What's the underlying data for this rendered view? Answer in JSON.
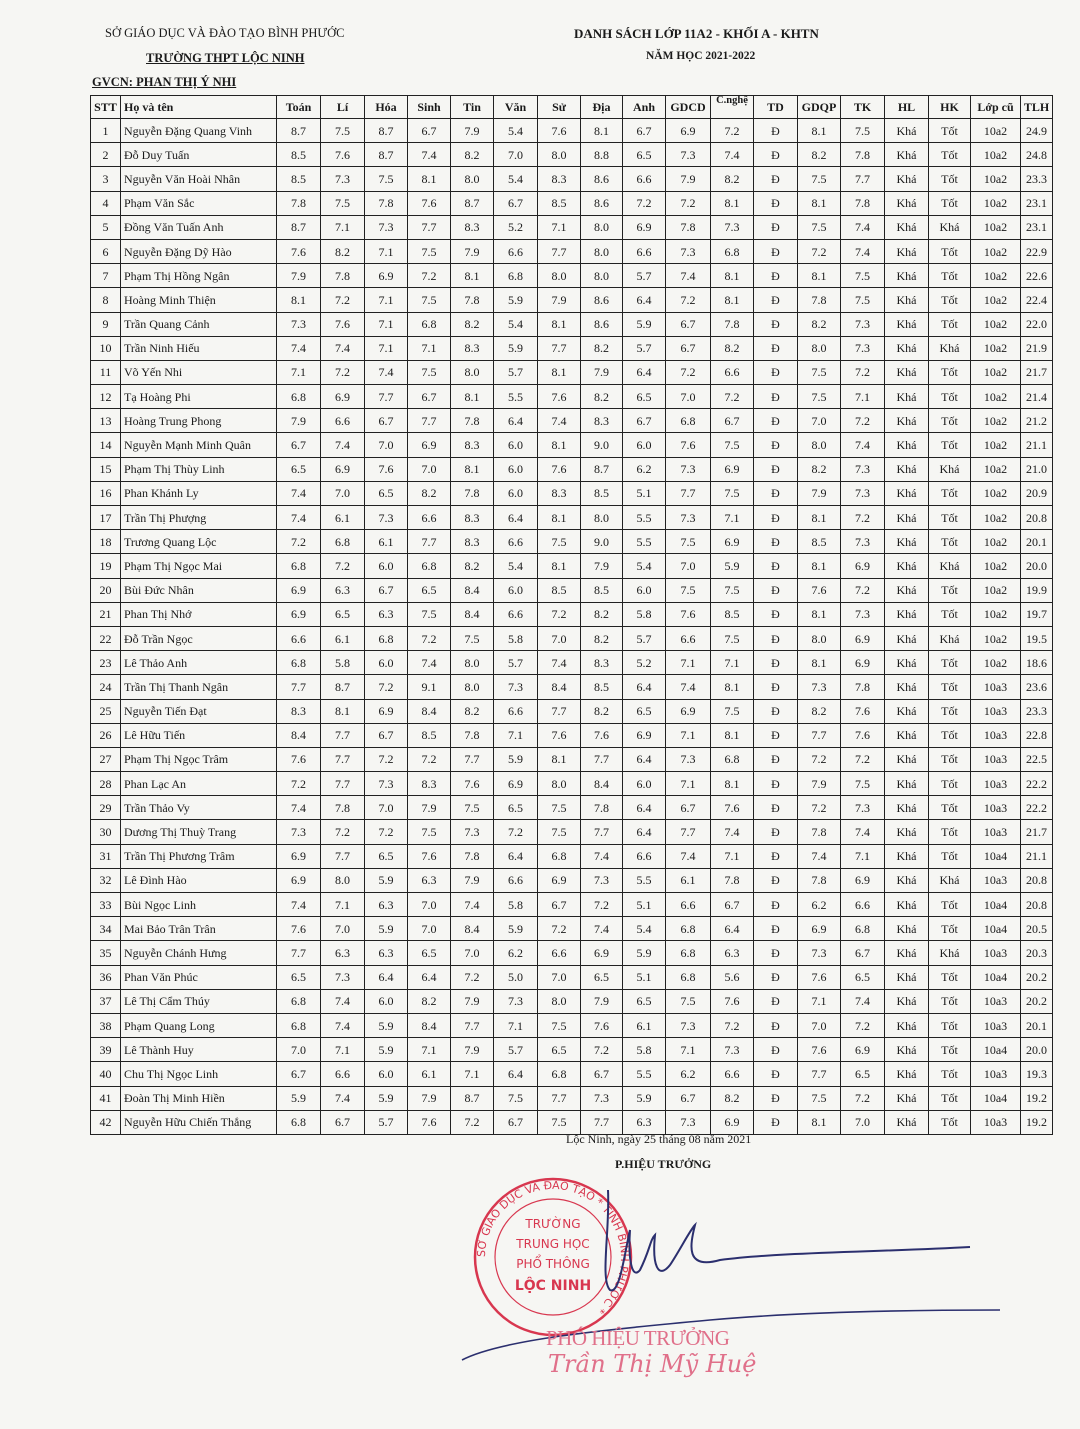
{
  "header": {
    "department": "SỞ GIÁO DỤC VÀ ĐÀO TẠO BÌNH PHƯỚC",
    "school": "TRƯỜNG THPT LỘC NINH",
    "teacher": "GVCN: PHAN THỊ Ý NHI",
    "title": "DANH SÁCH LỚP 11A2 - KHỐI A - KHTN",
    "school_year": "NĂM HỌC 2021-2022"
  },
  "table": {
    "columns": [
      "STT",
      "Họ và tên",
      "Toán",
      "Lí",
      "Hóa",
      "Sinh",
      "Tin",
      "Văn",
      "Sử",
      "Địa",
      "Anh",
      "GDCD",
      "C.nghệ",
      "TD",
      "GDQP",
      "TK",
      "HL",
      "HK",
      "Lớp cũ",
      "TLH"
    ],
    "rows": [
      [
        "1",
        "Nguyễn Đặng Quang Vinh",
        "8.7",
        "7.5",
        "8.7",
        "6.7",
        "7.9",
        "5.4",
        "7.6",
        "8.1",
        "6.7",
        "6.9",
        "7.2",
        "Đ",
        "8.1",
        "7.5",
        "Khá",
        "Tốt",
        "10a2",
        "24.9"
      ],
      [
        "2",
        "Đỗ Duy Tuấn",
        "8.5",
        "7.6",
        "8.7",
        "7.4",
        "8.2",
        "7.0",
        "8.0",
        "8.8",
        "6.5",
        "7.3",
        "7.4",
        "Đ",
        "8.2",
        "7.8",
        "Khá",
        "Tốt",
        "10a2",
        "24.8"
      ],
      [
        "3",
        "Nguyễn Văn Hoài Nhân",
        "8.5",
        "7.3",
        "7.5",
        "8.1",
        "8.0",
        "5.4",
        "8.3",
        "8.6",
        "6.6",
        "7.9",
        "8.2",
        "Đ",
        "7.5",
        "7.7",
        "Khá",
        "Tốt",
        "10a2",
        "23.3"
      ],
      [
        "4",
        "Phạm Văn Sắc",
        "7.8",
        "7.5",
        "7.8",
        "7.6",
        "8.7",
        "6.7",
        "8.5",
        "8.6",
        "7.2",
        "7.2",
        "8.1",
        "Đ",
        "8.1",
        "7.8",
        "Khá",
        "Tốt",
        "10a2",
        "23.1"
      ],
      [
        "5",
        "Đồng Văn Tuấn Anh",
        "8.7",
        "7.1",
        "7.3",
        "7.7",
        "8.3",
        "5.2",
        "7.1",
        "8.0",
        "6.9",
        "7.8",
        "7.3",
        "Đ",
        "7.5",
        "7.4",
        "Khá",
        "Khá",
        "10a2",
        "23.1"
      ],
      [
        "6",
        "Nguyễn Đặng Dỹ Hào",
        "7.6",
        "8.2",
        "7.1",
        "7.5",
        "7.9",
        "6.6",
        "7.7",
        "8.0",
        "6.6",
        "7.3",
        "6.8",
        "Đ",
        "7.2",
        "7.4",
        "Khá",
        "Tốt",
        "10a2",
        "22.9"
      ],
      [
        "7",
        "Phạm Thị Hồng Ngân",
        "7.9",
        "7.8",
        "6.9",
        "7.2",
        "8.1",
        "6.8",
        "8.0",
        "8.0",
        "5.7",
        "7.4",
        "8.1",
        "Đ",
        "8.1",
        "7.5",
        "Khá",
        "Tốt",
        "10a2",
        "22.6"
      ],
      [
        "8",
        "Hoàng Minh Thiện",
        "8.1",
        "7.2",
        "7.1",
        "7.5",
        "7.8",
        "5.9",
        "7.9",
        "8.6",
        "6.4",
        "7.2",
        "8.1",
        "Đ",
        "7.8",
        "7.5",
        "Khá",
        "Tốt",
        "10a2",
        "22.4"
      ],
      [
        "9",
        "Trần Quang Cảnh",
        "7.3",
        "7.6",
        "7.1",
        "6.8",
        "8.2",
        "5.4",
        "8.1",
        "8.6",
        "5.9",
        "6.7",
        "7.8",
        "Đ",
        "8.2",
        "7.3",
        "Khá",
        "Tốt",
        "10a2",
        "22.0"
      ],
      [
        "10",
        "Trần Ninh Hiếu",
        "7.4",
        "7.4",
        "7.1",
        "7.1",
        "8.3",
        "5.9",
        "7.7",
        "8.2",
        "5.7",
        "6.7",
        "8.2",
        "Đ",
        "8.0",
        "7.3",
        "Khá",
        "Khá",
        "10a2",
        "21.9"
      ],
      [
        "11",
        "Võ Yến Nhi",
        "7.1",
        "7.2",
        "7.4",
        "7.5",
        "8.0",
        "5.7",
        "8.1",
        "7.9",
        "6.4",
        "7.2",
        "6.6",
        "Đ",
        "7.5",
        "7.2",
        "Khá",
        "Tốt",
        "10a2",
        "21.7"
      ],
      [
        "12",
        "Tạ Hoàng Phi",
        "6.8",
        "6.9",
        "7.7",
        "6.7",
        "8.1",
        "5.5",
        "7.6",
        "8.2",
        "6.5",
        "7.0",
        "7.2",
        "Đ",
        "7.5",
        "7.1",
        "Khá",
        "Tốt",
        "10a2",
        "21.4"
      ],
      [
        "13",
        "Hoàng Trung Phong",
        "7.9",
        "6.6",
        "6.7",
        "7.7",
        "7.8",
        "6.4",
        "7.4",
        "8.3",
        "6.7",
        "6.8",
        "6.7",
        "Đ",
        "7.0",
        "7.2",
        "Khá",
        "Tốt",
        "10a2",
        "21.2"
      ],
      [
        "14",
        "Nguyễn Mạnh Minh Quân",
        "6.7",
        "7.4",
        "7.0",
        "6.9",
        "8.3",
        "6.0",
        "8.1",
        "9.0",
        "6.0",
        "7.6",
        "7.5",
        "Đ",
        "8.0",
        "7.4",
        "Khá",
        "Tốt",
        "10a2",
        "21.1"
      ],
      [
        "15",
        "Phạm Thị Thùy Linh",
        "6.5",
        "6.9",
        "7.6",
        "7.0",
        "8.1",
        "6.0",
        "7.6",
        "8.7",
        "6.2",
        "7.3",
        "6.9",
        "Đ",
        "8.2",
        "7.3",
        "Khá",
        "Khá",
        "10a2",
        "21.0"
      ],
      [
        "16",
        "Phan Khánh Ly",
        "7.4",
        "7.0",
        "6.5",
        "8.2",
        "7.8",
        "6.0",
        "8.3",
        "8.5",
        "5.1",
        "7.7",
        "7.5",
        "Đ",
        "7.9",
        "7.3",
        "Khá",
        "Tốt",
        "10a2",
        "20.9"
      ],
      [
        "17",
        "Trần Thị Phượng",
        "7.4",
        "6.1",
        "7.3",
        "6.6",
        "8.3",
        "6.4",
        "8.1",
        "8.0",
        "5.5",
        "7.3",
        "7.1",
        "Đ",
        "8.1",
        "7.2",
        "Khá",
        "Tốt",
        "10a2",
        "20.8"
      ],
      [
        "18",
        "Trương Quang Lộc",
        "7.2",
        "6.8",
        "6.1",
        "7.7",
        "8.3",
        "6.6",
        "7.5",
        "9.0",
        "5.5",
        "7.5",
        "6.9",
        "Đ",
        "8.5",
        "7.3",
        "Khá",
        "Tốt",
        "10a2",
        "20.1"
      ],
      [
        "19",
        "Phạm Thị Ngọc Mai",
        "6.8",
        "7.2",
        "6.0",
        "6.8",
        "8.2",
        "5.4",
        "8.1",
        "7.9",
        "5.4",
        "7.0",
        "5.9",
        "Đ",
        "8.1",
        "6.9",
        "Khá",
        "Khá",
        "10a2",
        "20.0"
      ],
      [
        "20",
        "Bùi Đức Nhân",
        "6.9",
        "6.3",
        "6.7",
        "6.5",
        "8.4",
        "6.0",
        "8.5",
        "8.5",
        "6.0",
        "7.5",
        "7.5",
        "Đ",
        "7.6",
        "7.2",
        "Khá",
        "Tốt",
        "10a2",
        "19.9"
      ],
      [
        "21",
        "Phan Thị Nhớ",
        "6.9",
        "6.5",
        "6.3",
        "7.5",
        "8.4",
        "6.6",
        "7.2",
        "8.2",
        "5.8",
        "7.6",
        "8.5",
        "Đ",
        "8.1",
        "7.3",
        "Khá",
        "Tốt",
        "10a2",
        "19.7"
      ],
      [
        "22",
        "Đỗ Trần Ngọc",
        "6.6",
        "6.1",
        "6.8",
        "7.2",
        "7.5",
        "5.8",
        "7.0",
        "8.2",
        "5.7",
        "6.6",
        "7.5",
        "Đ",
        "8.0",
        "6.9",
        "Khá",
        "Khá",
        "10a2",
        "19.5"
      ],
      [
        "23",
        "Lê Thảo Anh",
        "6.8",
        "5.8",
        "6.0",
        "7.4",
        "8.0",
        "5.7",
        "7.4",
        "8.3",
        "5.2",
        "7.1",
        "7.1",
        "Đ",
        "8.1",
        "6.9",
        "Khá",
        "Tốt",
        "10a2",
        "18.6"
      ],
      [
        "24",
        "Trần Thị Thanh Ngân",
        "7.7",
        "8.7",
        "7.2",
        "9.1",
        "8.0",
        "7.3",
        "8.4",
        "8.5",
        "6.4",
        "7.4",
        "8.1",
        "Đ",
        "7.3",
        "7.8",
        "Khá",
        "Tốt",
        "10a3",
        "23.6"
      ],
      [
        "25",
        "Nguyễn Tiến Đạt",
        "8.3",
        "8.1",
        "6.9",
        "8.4",
        "8.2",
        "6.6",
        "7.7",
        "8.2",
        "6.5",
        "6.9",
        "7.5",
        "Đ",
        "8.2",
        "7.6",
        "Khá",
        "Tốt",
        "10a3",
        "23.3"
      ],
      [
        "26",
        "Lê Hữu Tiến",
        "8.4",
        "7.7",
        "6.7",
        "8.5",
        "7.8",
        "7.1",
        "7.6",
        "7.6",
        "6.9",
        "7.1",
        "8.1",
        "Đ",
        "7.7",
        "7.6",
        "Khá",
        "Tốt",
        "10a3",
        "22.8"
      ],
      [
        "27",
        "Phạm Thị Ngọc Trâm",
        "7.6",
        "7.7",
        "7.2",
        "7.2",
        "7.7",
        "5.9",
        "8.1",
        "7.7",
        "6.4",
        "7.3",
        "6.8",
        "Đ",
        "7.2",
        "7.2",
        "Khá",
        "Tốt",
        "10a3",
        "22.5"
      ],
      [
        "28",
        "Phan Lạc An",
        "7.2",
        "7.7",
        "7.3",
        "8.3",
        "7.6",
        "6.9",
        "8.0",
        "8.4",
        "6.0",
        "7.1",
        "8.1",
        "Đ",
        "7.9",
        "7.5",
        "Khá",
        "Tốt",
        "10a3",
        "22.2"
      ],
      [
        "29",
        "Trần Thảo Vy",
        "7.4",
        "7.8",
        "7.0",
        "7.9",
        "7.5",
        "6.5",
        "7.5",
        "7.8",
        "6.4",
        "6.7",
        "7.6",
        "Đ",
        "7.2",
        "7.3",
        "Khá",
        "Tốt",
        "10a3",
        "22.2"
      ],
      [
        "30",
        "Dương Thị Thuỳ Trang",
        "7.3",
        "7.2",
        "7.2",
        "7.5",
        "7.3",
        "7.2",
        "7.5",
        "7.7",
        "6.4",
        "7.7",
        "7.4",
        "Đ",
        "7.8",
        "7.4",
        "Khá",
        "Tốt",
        "10a3",
        "21.7"
      ],
      [
        "31",
        "Trần Thị Phương Trâm",
        "6.9",
        "7.7",
        "6.5",
        "7.6",
        "7.8",
        "6.4",
        "6.8",
        "7.4",
        "6.6",
        "7.4",
        "7.1",
        "Đ",
        "7.4",
        "7.1",
        "Khá",
        "Tốt",
        "10a4",
        "21.1"
      ],
      [
        "32",
        "Lê Đình Hào",
        "6.9",
        "8.0",
        "5.9",
        "6.3",
        "7.9",
        "6.6",
        "6.9",
        "7.3",
        "5.5",
        "6.1",
        "7.8",
        "Đ",
        "7.8",
        "6.9",
        "Khá",
        "Khá",
        "10a3",
        "20.8"
      ],
      [
        "33",
        "Bùi Ngọc Linh",
        "7.4",
        "7.1",
        "6.3",
        "7.0",
        "7.4",
        "5.8",
        "6.7",
        "7.2",
        "5.1",
        "6.6",
        "6.7",
        "Đ",
        "6.2",
        "6.6",
        "Khá",
        "Tốt",
        "10a4",
        "20.8"
      ],
      [
        "34",
        "Mai Bảo Trân Trân",
        "7.6",
        "7.0",
        "5.9",
        "7.0",
        "8.4",
        "5.9",
        "7.2",
        "7.4",
        "5.4",
        "6.8",
        "6.4",
        "Đ",
        "6.9",
        "6.8",
        "Khá",
        "Tốt",
        "10a4",
        "20.5"
      ],
      [
        "35",
        "Nguyễn Chánh Hưng",
        "7.7",
        "6.3",
        "6.3",
        "6.5",
        "7.0",
        "6.2",
        "6.6",
        "6.9",
        "5.9",
        "6.8",
        "6.3",
        "Đ",
        "7.3",
        "6.7",
        "Khá",
        "Khá",
        "10a3",
        "20.3"
      ],
      [
        "36",
        "Phan Văn Phúc",
        "6.5",
        "7.3",
        "6.4",
        "6.4",
        "7.2",
        "5.0",
        "7.0",
        "6.5",
        "5.1",
        "6.8",
        "5.6",
        "Đ",
        "7.6",
        "6.5",
        "Khá",
        "Tốt",
        "10a4",
        "20.2"
      ],
      [
        "37",
        "Lê Thị Cẩm Thúy",
        "6.8",
        "7.4",
        "6.0",
        "8.2",
        "7.9",
        "7.3",
        "8.0",
        "7.9",
        "6.5",
        "7.5",
        "7.6",
        "Đ",
        "7.1",
        "7.4",
        "Khá",
        "Tốt",
        "10a3",
        "20.2"
      ],
      [
        "38",
        "Phạm Quang Long",
        "6.8",
        "7.4",
        "5.9",
        "8.4",
        "7.7",
        "7.1",
        "7.5",
        "7.6",
        "6.1",
        "7.3",
        "7.2",
        "Đ",
        "7.0",
        "7.2",
        "Khá",
        "Tốt",
        "10a3",
        "20.1"
      ],
      [
        "39",
        "Lê Thành Huy",
        "7.0",
        "7.1",
        "5.9",
        "7.1",
        "7.9",
        "5.7",
        "6.5",
        "7.2",
        "5.8",
        "7.1",
        "7.3",
        "Đ",
        "7.6",
        "6.9",
        "Khá",
        "Tốt",
        "10a4",
        "20.0"
      ],
      [
        "40",
        "Chu Thị Ngọc Linh",
        "6.7",
        "6.6",
        "6.0",
        "6.1",
        "7.1",
        "6.4",
        "6.8",
        "6.7",
        "5.5",
        "6.2",
        "6.6",
        "Đ",
        "7.7",
        "6.5",
        "Khá",
        "Tốt",
        "10a3",
        "19.3"
      ],
      [
        "41",
        "Đoàn Thị Minh Hiền",
        "5.9",
        "7.4",
        "5.9",
        "7.9",
        "8.7",
        "7.5",
        "7.7",
        "7.3",
        "5.9",
        "6.7",
        "8.2",
        "Đ",
        "7.5",
        "7.2",
        "Khá",
        "Tốt",
        "10a4",
        "19.2"
      ],
      [
        "42",
        "Nguyễn Hữu Chiến Thắng",
        "6.8",
        "6.7",
        "5.7",
        "7.6",
        "7.2",
        "6.7",
        "7.5",
        "7.7",
        "6.3",
        "7.3",
        "6.9",
        "Đ",
        "8.1",
        "7.0",
        "Khá",
        "Tốt",
        "10a3",
        "19.2"
      ]
    ]
  },
  "footer": {
    "date": "Lộc Ninh, ngày 25 tháng 08 năm 2021",
    "signer_title": "P.HIỆU TRƯỞNG",
    "stamp_title": "PHÓ HIỆU TRƯỞNG",
    "stamp_name": "Trần Thị Mỹ Huệ",
    "stamp_text": [
      "TRƯỜNG",
      "TRUNG HỌC",
      "PHỔ THÔNG",
      "LỘC NINH"
    ],
    "stamp_ring": "SỞ GIÁO DỤC VÀ ĐÀO TẠO * TỈNH BÌNH PHƯỚC"
  },
  "colors": {
    "stamp": "#d8374f",
    "signature_ink": "#2b2f6e",
    "name_stamp": "#e0708a"
  }
}
